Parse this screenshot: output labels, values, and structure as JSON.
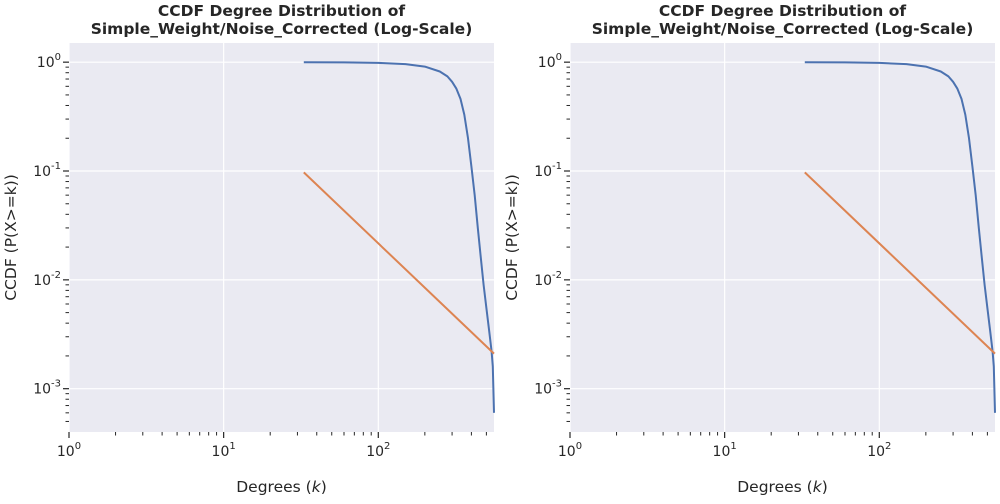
{
  "chart_data": [
    {
      "type": "line",
      "title_line1": "CCDF Degree Distribution of",
      "title_line2": "Simple_Weight/Noise_Corrected (Log-Scale)",
      "xlabel": "Degrees (k)",
      "xlabel_prefix": "Degrees (",
      "xlabel_var": "k",
      "xlabel_suffix": ")",
      "ylabel": "CCDF (P(X>=k))",
      "xscale": "log",
      "yscale": "log",
      "xlim": [
        1,
        560
      ],
      "ylim": [
        0.0004,
        1.5
      ],
      "grid": true,
      "background": "#eaeaf2",
      "x_ticks": [
        {
          "base": "10",
          "exp": "0",
          "value": 1
        },
        {
          "base": "10",
          "exp": "1",
          "value": 10
        },
        {
          "base": "10",
          "exp": "2",
          "value": 100
        }
      ],
      "y_ticks": [
        {
          "base": "10",
          "exp": "0",
          "value": 1
        },
        {
          "base": "10",
          "exp": "-1",
          "value": 0.1
        },
        {
          "base": "10",
          "exp": "-2",
          "value": 0.01
        },
        {
          "base": "10",
          "exp": "-3",
          "value": 0.001
        }
      ],
      "series": [
        {
          "color": "#4c72b0",
          "x": [
            33,
            60,
            100,
            150,
            200,
            250,
            280,
            300,
            320,
            340,
            360,
            380,
            400,
            420,
            440,
            460,
            480,
            500,
            520,
            540,
            550,
            560
          ],
          "y": [
            1.0,
            0.995,
            0.985,
            0.96,
            0.91,
            0.82,
            0.74,
            0.66,
            0.57,
            0.46,
            0.33,
            0.2,
            0.11,
            0.06,
            0.03,
            0.016,
            0.009,
            0.0055,
            0.0035,
            0.0022,
            0.0016,
            0.0006
          ]
        },
        {
          "color": "#dd8452",
          "x": [
            33,
            560
          ],
          "y": [
            0.097,
            0.0021
          ]
        }
      ]
    },
    {
      "type": "line",
      "title_line1": "CCDF Degree Distribution of",
      "title_line2": "Simple_Weight/Noise_Corrected (Log-Scale)",
      "xlabel": "Degrees (k)",
      "xlabel_prefix": "Degrees (",
      "xlabel_var": "k",
      "xlabel_suffix": ")",
      "ylabel": "CCDF (P(X>=k))",
      "xscale": "log",
      "yscale": "log",
      "xlim": [
        1,
        560
      ],
      "ylim": [
        0.0004,
        1.5
      ],
      "grid": true,
      "background": "#eaeaf2",
      "x_ticks": [
        {
          "base": "10",
          "exp": "0",
          "value": 1
        },
        {
          "base": "10",
          "exp": "1",
          "value": 10
        },
        {
          "base": "10",
          "exp": "2",
          "value": 100
        }
      ],
      "y_ticks": [
        {
          "base": "10",
          "exp": "0",
          "value": 1
        },
        {
          "base": "10",
          "exp": "-1",
          "value": 0.1
        },
        {
          "base": "10",
          "exp": "-2",
          "value": 0.01
        },
        {
          "base": "10",
          "exp": "-3",
          "value": 0.001
        }
      ],
      "series": [
        {
          "color": "#4c72b0",
          "x": [
            33,
            60,
            100,
            150,
            200,
            250,
            280,
            300,
            320,
            340,
            360,
            380,
            400,
            420,
            440,
            460,
            480,
            500,
            520,
            540,
            550,
            560
          ],
          "y": [
            1.0,
            0.995,
            0.985,
            0.96,
            0.91,
            0.82,
            0.74,
            0.66,
            0.57,
            0.46,
            0.33,
            0.2,
            0.11,
            0.06,
            0.03,
            0.016,
            0.009,
            0.0055,
            0.0035,
            0.0022,
            0.0016,
            0.0006
          ]
        },
        {
          "color": "#dd8452",
          "x": [
            33,
            560
          ],
          "y": [
            0.097,
            0.0021
          ]
        }
      ]
    }
  ]
}
